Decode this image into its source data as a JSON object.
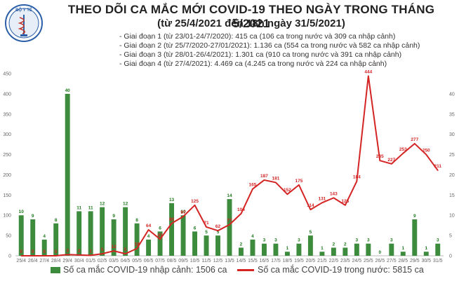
{
  "header": {
    "logo_text": "BỘ Y TẾ",
    "title": "THEO DÕI CA MẮC MỚI COVID-19 THEO NGÀY TRONG THÁNG 5/2021",
    "subtitle": "(từ 25/4/2021 đến 18h ngày 31/5/2021)",
    "phases": [
      "- Giai đoạn 1 (từ 23/01-24/7/2020): 415 ca (106 ca trong nước và 309 ca nhập cảnh)",
      "- Giai đoạn 2 (từ 25/7/2020-27/01/2021): 1.136 ca (554 ca trong nước và 582 ca nhập cảnh)",
      "- Giai đoạn 3 (từ 28/01-26/4/2021): 1.301 ca (910 ca trong nước và 391 ca nhập cảnh)",
      "- Giai đoạn 4 (từ 27/4/2021): 4.469 ca (4.245 ca trong nước và 224 ca nhập cảnh)"
    ]
  },
  "legend": {
    "bar_label": "Số ca mắc COVID-19 nhập cảnh: 1506 ca",
    "line_label": "Số ca mắc COVID-19 trong nước: 5815 ca"
  },
  "colors": {
    "bar": "#3d8c3d",
    "line": "#d42424",
    "bar_label": "#1e7a1e"
  },
  "chart_data": {
    "type": "bar+line",
    "categories": [
      "25/4",
      "26/4",
      "27/4",
      "28/4",
      "29/4",
      "30/4",
      "01/5",
      "02/5",
      "03/5",
      "04/5",
      "05/5",
      "06/5",
      "07/5",
      "08/5",
      "09/5",
      "10/5",
      "11/5",
      "12/5",
      "13/5",
      "14/5",
      "15/5",
      "16/5",
      "17/5",
      "18/5",
      "19/5",
      "20/5",
      "21/5",
      "22/5",
      "23/5",
      "24/5",
      "25/5",
      "26/5",
      "27/5",
      "28/5",
      "29/5",
      "30/5",
      "31/5"
    ],
    "series": [
      {
        "name": "Số ca mắc COVID-19 nhập cảnh",
        "type": "bar",
        "axis": "right",
        "values": [
          10,
          9,
          4,
          8,
          40,
          11,
          11,
          12,
          9,
          12,
          8,
          4,
          6,
          13,
          10,
          6,
          5,
          5,
          14,
          2,
          4,
          3,
          3,
          1,
          3,
          5,
          1,
          2,
          2,
          3,
          3,
          0,
          3,
          1,
          9,
          1,
          3
        ]
      },
      {
        "name": "Số ca mắc COVID-19 trong nước",
        "type": "line",
        "axis": "left",
        "values": [
          0,
          0,
          0,
          0,
          3,
          2,
          1,
          5,
          12,
          5,
          18,
          64,
          41,
          80,
          97,
          125,
          71,
          62,
          77,
          104,
          165,
          187,
          181,
          152,
          175,
          114,
          131,
          143,
          125,
          184,
          444,
          235,
          227,
          253,
          277,
          250,
          211
        ]
      }
    ],
    "y_left": {
      "min": 0,
      "max": 450,
      "ticks": [
        0,
        50,
        100,
        150,
        200,
        250,
        300,
        350,
        400,
        450
      ]
    },
    "y_right": {
      "min": 0,
      "max": 45,
      "ticks": [
        0,
        5,
        10,
        15,
        20,
        25,
        30,
        35,
        40
      ]
    },
    "grid": false,
    "legend_position": "bottom"
  }
}
